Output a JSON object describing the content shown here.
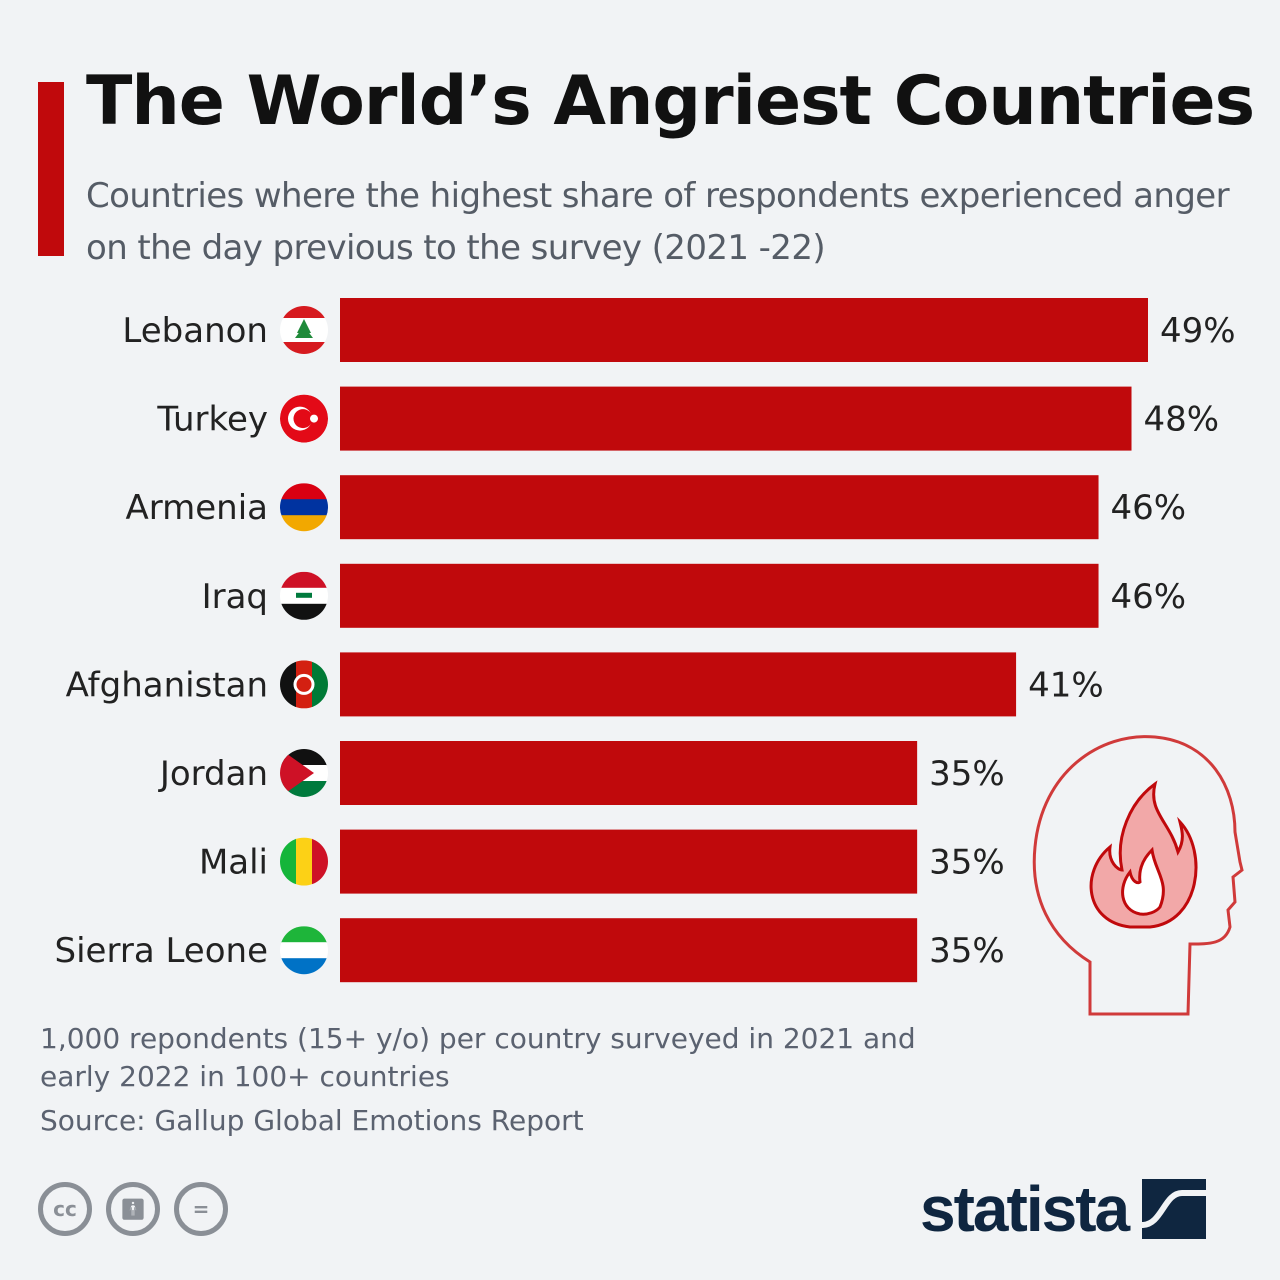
{
  "title": "The World’s Angriest Countries",
  "subtitle": "Countries where the highest share of respondents experienced anger on the day previous to the survey (2021 -22)",
  "note": "1,000 repondents (15+ y/o) per country surveyed in 2021 and early 2022 in 100+ countries",
  "source": "Source: Gallup Global Emotions Report",
  "brand": "statista",
  "license_icons": [
    "cc-icon",
    "attribution-icon",
    "no-derivatives-icon"
  ],
  "license_labels": [
    "cc",
    "",
    "="
  ],
  "colors": {
    "bar": "#c0090c",
    "background": "#f1f3f5",
    "accent": "#c0090c",
    "brand": "#0f2640"
  },
  "chart_data": {
    "type": "bar",
    "orientation": "horizontal",
    "categories": [
      "Lebanon",
      "Turkey",
      "Armenia",
      "Iraq",
      "Afghanistan",
      "Jordan",
      "Mali",
      "Sierra Leone"
    ],
    "values": [
      49,
      48,
      46,
      46,
      41,
      35,
      35,
      35
    ],
    "value_labels": [
      "49%",
      "48%",
      "46%",
      "46%",
      "41%",
      "35%",
      "35%",
      "35%"
    ],
    "flags": [
      "lebanon-flag-icon",
      "turkey-flag-icon",
      "armenia-flag-icon",
      "iraq-flag-icon",
      "afghanistan-flag-icon",
      "jordan-flag-icon",
      "mali-flag-icon",
      "sierra-leone-flag-icon"
    ],
    "unit": "%",
    "xlim": [
      0,
      49
    ],
    "grid": false,
    "legend": "none"
  }
}
